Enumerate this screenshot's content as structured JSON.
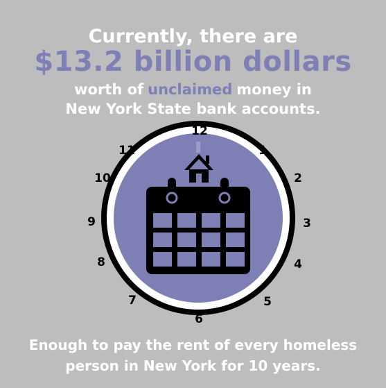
{
  "headline": {
    "line1": "Currently, there are",
    "amount": "$13.2 billion dollars",
    "line3_pre": "worth of",
    "line3_highlight": "unclaimed",
    "line3_post": "money in",
    "line4": "New York State bank accounts."
  },
  "clock_numbers": [
    "12",
    "1",
    "2",
    "3",
    "4",
    "5",
    "6",
    "7",
    "8",
    "9",
    "10",
    "11"
  ],
  "footer": {
    "line1": "Enough to pay the rent of every homeless",
    "line2": "person in New York for 10 years."
  },
  "icons": [
    "house-icon",
    "calendar-icon"
  ],
  "colors": {
    "background": "#bdbdbd",
    "accent": "#7e80b5",
    "text": "#ffffff",
    "clock_ring": "#000000",
    "calendar_cell": "#7e80b5"
  }
}
